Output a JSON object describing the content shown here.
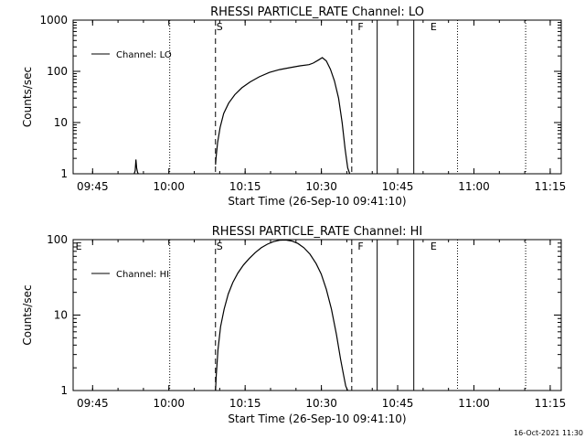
{
  "timestamp": "16-Oct-2021 11:30",
  "colors": {
    "background": "#ffffff",
    "foreground": "#000000"
  },
  "chart_data": [
    {
      "type": "line",
      "title": "RHESSI PARTICLE_RATE Channel: LO",
      "xlabel": "Start Time (26-Sep-10 09:41:10)",
      "ylabel": "Counts/sec",
      "x_unit": "minutes since 09:41:10",
      "xlim": [
        0,
        96
      ],
      "ylim": [
        1,
        1000
      ],
      "yscale": "log",
      "xtick_labels": [
        "09:45",
        "10:00",
        "10:15",
        "10:30",
        "10:45",
        "11:00",
        "11:15"
      ],
      "xtick_values": [
        3.83,
        18.83,
        33.83,
        48.83,
        63.83,
        78.83,
        93.83
      ],
      "ytick_labels": [
        "1",
        "10",
        "100",
        "1000"
      ],
      "ytick_values": [
        1,
        10,
        100,
        1000
      ],
      "legend": {
        "label": "Channel: LO",
        "placement": "top-left"
      },
      "series": [
        {
          "name": "Channel: LO",
          "segments": [
            {
              "x": [
                12.0,
                12.2,
                12.35,
                12.5,
                12.65,
                12.8
              ],
              "y": [
                1,
                1.15,
                1.9,
                1.3,
                1.08,
                1
              ]
            },
            {
              "x": [
                28.0,
                28.1,
                28.4,
                28.9,
                29.6,
                30.6,
                31.8,
                33.2,
                34.8,
                36.6,
                38.6,
                40.6,
                42.6,
                44.6,
                46.4,
                47.2,
                48.2,
                49.0,
                49.8,
                50.6,
                51.4,
                52.2,
                52.9,
                53.5,
                54.0,
                54.4
              ],
              "y": [
                1.5,
                2.0,
                4.0,
                8.0,
                15,
                24,
                35,
                48,
                62,
                78,
                95,
                108,
                118,
                128,
                135,
                145,
                165,
                185,
                160,
                110,
                65,
                30,
                10,
                3.0,
                1.3,
                1.0
              ]
            }
          ]
        }
      ],
      "annotations": [
        {
          "text": "S",
          "x": 28.0
        },
        {
          "text": "F",
          "x": 55.8
        },
        {
          "text": "E",
          "x": 70.1
        }
      ],
      "vertical_lines": [
        {
          "x": 19.0,
          "style": "dotted"
        },
        {
          "x": 28.0,
          "style": "dashed"
        },
        {
          "x": 54.8,
          "style": "dashed"
        },
        {
          "x": 59.8,
          "style": "solid"
        },
        {
          "x": 67.0,
          "style": "solid"
        },
        {
          "x": 75.6,
          "style": "dotted"
        },
        {
          "x": 89.0,
          "style": "dotted"
        }
      ]
    },
    {
      "type": "line",
      "title": "RHESSI PARTICLE_RATE Channel: HI",
      "xlabel": "Start Time (26-Sep-10 09:41:10)",
      "ylabel": "Counts/sec",
      "x_unit": "minutes since 09:41:10",
      "xlim": [
        0,
        96
      ],
      "ylim": [
        1,
        100
      ],
      "yscale": "log",
      "xtick_labels": [
        "09:45",
        "10:00",
        "10:15",
        "10:30",
        "10:45",
        "11:00",
        "11:15"
      ],
      "xtick_values": [
        3.83,
        18.83,
        33.83,
        48.83,
        63.83,
        78.83,
        93.83
      ],
      "ytick_labels": [
        "1",
        "10",
        "100"
      ],
      "ytick_values": [
        1,
        10,
        100
      ],
      "legend": {
        "label": "Channel: HI",
        "placement": "top-left"
      },
      "series": [
        {
          "name": "Channel: HI",
          "segments": [
            {
              "x": [
                28.0,
                28.15,
                28.5,
                29.0,
                29.7,
                30.5,
                31.4,
                32.4,
                33.5,
                34.6,
                35.8,
                37.0,
                38.2,
                39.4,
                40.6,
                41.8,
                43.0,
                44.2,
                45.4,
                46.6,
                47.8,
                48.8,
                49.8,
                50.8,
                51.8,
                52.6,
                53.2,
                53.6,
                54.0
              ],
              "y": [
                1.0,
                1.6,
                3.5,
                7,
                12,
                19,
                27,
                36,
                46,
                56,
                67,
                78,
                87,
                94,
                98,
                99,
                96,
                89,
                78,
                64,
                48,
                35,
                22,
                12,
                5.5,
                2.6,
                1.6,
                1.15,
                1.0
              ]
            }
          ]
        }
      ],
      "annotations": [
        {
          "text": "E",
          "x": 0.3
        },
        {
          "text": "S",
          "x": 28.0
        },
        {
          "text": "F",
          "x": 55.8
        },
        {
          "text": "E",
          "x": 70.1
        }
      ],
      "vertical_lines": [
        {
          "x": 19.0,
          "style": "dotted"
        },
        {
          "x": 28.0,
          "style": "dashed"
        },
        {
          "x": 54.8,
          "style": "dashed"
        },
        {
          "x": 59.8,
          "style": "solid"
        },
        {
          "x": 67.0,
          "style": "solid"
        },
        {
          "x": 75.6,
          "style": "dotted"
        },
        {
          "x": 89.0,
          "style": "dotted"
        }
      ]
    }
  ]
}
